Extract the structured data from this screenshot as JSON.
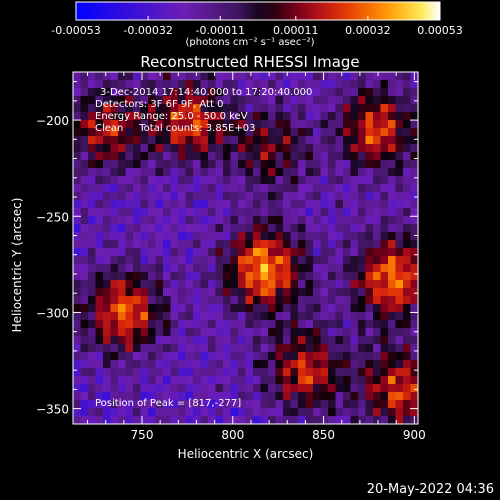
{
  "chart_data": {
    "type": "heatmap",
    "title": "Reconstructed RHESSI Image",
    "xlabel": "Heliocentric X (arcsec)",
    "ylabel": "Heliocentric Y (arcsec)",
    "xlim": [
      712,
      902
    ],
    "ylim": [
      -358,
      -175
    ],
    "xticks": [
      750,
      800,
      850,
      900
    ],
    "yticks": [
      -200,
      -250,
      -300,
      -350
    ],
    "colorbar": {
      "label": "(photons cm⁻² s⁻¹ asec⁻²)",
      "range": [
        -0.00053,
        0.00053
      ],
      "ticks": [
        "-0.00053",
        "-0.00032",
        "-0.00011",
        "0.00011",
        "0.00032",
        "0.00053"
      ],
      "tick_values": [
        -0.00053,
        -0.00032,
        -0.00011,
        0.00011,
        0.00032,
        0.00053
      ]
    },
    "annotations": [
      "3-Dec-2014 17:14:40.000 to 17:20:40.000",
      "Detectors: 3F 6F 9F, Att 0",
      "Energy Range: 25.0 - 50.0 keV",
      "Clean     Total counts: 3.85E+03"
    ],
    "peak_label": "Position of Peak = [817,-277]",
    "peak": [
      817,
      -277
    ],
    "sources": [
      {
        "x": 817,
        "y": -277,
        "intensity": 0.00053
      },
      {
        "x": 740,
        "y": -300,
        "intensity": 0.00045
      },
      {
        "x": 888,
        "y": -282,
        "intensity": 0.00048
      },
      {
        "x": 880,
        "y": -205,
        "intensity": 0.00042
      },
      {
        "x": 775,
        "y": -200,
        "intensity": 0.0004
      },
      {
        "x": 730,
        "y": -205,
        "intensity": 0.00035
      },
      {
        "x": 840,
        "y": -330,
        "intensity": 0.00038
      },
      {
        "x": 892,
        "y": -340,
        "intensity": 0.0004
      },
      {
        "x": 820,
        "y": -215,
        "intensity": 0.00028
      }
    ]
  },
  "footer": "20-May-2022 04:36"
}
